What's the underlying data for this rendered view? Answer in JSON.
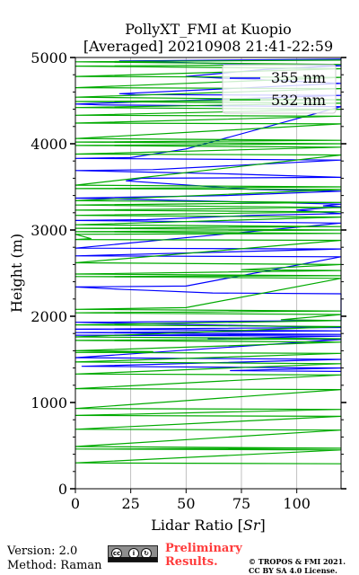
{
  "chart_data": {
    "type": "line",
    "title": "PollyXT_FMI at Kuopio",
    "subtitle": "[Averaged] 20210908 21:41-22:59",
    "xlabel": "Lidar Ratio [",
    "xlabel_unit": "Sr",
    "xlabel_close": "]",
    "ylabel": "Height (m)",
    "xlim": [
      0,
      120
    ],
    "ylim": [
      0,
      5000
    ],
    "xticks": [
      0,
      25,
      50,
      75,
      100
    ],
    "yticks": [
      0,
      1000,
      2000,
      3000,
      4000,
      5000
    ],
    "grid": true,
    "legend_position": "top-right",
    "series": [
      {
        "name": "355 nm",
        "color": "#0000ff",
        "points": [
          {
            "x": 120,
            "y": 4980
          },
          {
            "x": 20,
            "y": 4960
          },
          {
            "x": 73,
            "y": 4925
          },
          {
            "x": 120,
            "y": 4905
          },
          {
            "x": 85,
            "y": 4860
          },
          {
            "x": 50,
            "y": 4780
          },
          {
            "x": 120,
            "y": 4700
          },
          {
            "x": 20,
            "y": 4580
          },
          {
            "x": 27,
            "y": 4570
          },
          {
            "x": 120,
            "y": 4560
          },
          {
            "x": 0,
            "y": 4460
          },
          {
            "x": 12,
            "y": 4450
          },
          {
            "x": 120,
            "y": 4430
          },
          {
            "x": 50,
            "y": 3940
          },
          {
            "x": 25,
            "y": 3840
          },
          {
            "x": 0,
            "y": 3830
          },
          {
            "x": 120,
            "y": 3810
          },
          {
            "x": 35,
            "y": 3700
          },
          {
            "x": 0,
            "y": 3690
          },
          {
            "x": 70,
            "y": 3650
          },
          {
            "x": 120,
            "y": 3610
          },
          {
            "x": 30,
            "y": 3600
          },
          {
            "x": 23,
            "y": 3570
          },
          {
            "x": 80,
            "y": 3470
          },
          {
            "x": 120,
            "y": 3450
          },
          {
            "x": 68,
            "y": 3400
          },
          {
            "x": 0,
            "y": 3370
          },
          {
            "x": 120,
            "y": 3300
          },
          {
            "x": 112,
            "y": 3280
          },
          {
            "x": 120,
            "y": 3270
          },
          {
            "x": 100,
            "y": 3230
          },
          {
            "x": 120,
            "y": 3190
          },
          {
            "x": 80,
            "y": 3170
          },
          {
            "x": 32,
            "y": 3120
          },
          {
            "x": 0,
            "y": 3110
          },
          {
            "x": 120,
            "y": 3080
          },
          {
            "x": 0,
            "y": 2790
          },
          {
            "x": 120,
            "y": 2780
          },
          {
            "x": 0,
            "y": 2700
          },
          {
            "x": 120,
            "y": 2690
          },
          {
            "x": 50,
            "y": 2350
          },
          {
            "x": 0,
            "y": 2340
          },
          {
            "x": 22,
            "y": 2310
          },
          {
            "x": 33,
            "y": 2300
          },
          {
            "x": 62,
            "y": 2270
          },
          {
            "x": 120,
            "y": 2260
          },
          {
            "x": 120,
            "y": 1950
          },
          {
            "x": 0,
            "y": 1930
          },
          {
            "x": 120,
            "y": 1870
          },
          {
            "x": 0,
            "y": 1850
          },
          {
            "x": 120,
            "y": 1830
          },
          {
            "x": 0,
            "y": 1810
          },
          {
            "x": 120,
            "y": 1790
          },
          {
            "x": 0,
            "y": 1780
          },
          {
            "x": 120,
            "y": 1770
          },
          {
            "x": 60,
            "y": 1740
          },
          {
            "x": 120,
            "y": 1730
          },
          {
            "x": 0,
            "y": 1520
          },
          {
            "x": 120,
            "y": 1500
          },
          {
            "x": 3,
            "y": 1420
          },
          {
            "x": 120,
            "y": 1400
          },
          {
            "x": 70,
            "y": 1370
          },
          {
            "x": 120,
            "y": 1360
          }
        ]
      },
      {
        "name": "532 nm",
        "color": "#00aa00",
        "points": [
          {
            "x": 120,
            "y": 4970
          },
          {
            "x": 0,
            "y": 4950
          },
          {
            "x": 120,
            "y": 4920
          },
          {
            "x": 0,
            "y": 4900
          },
          {
            "x": 120,
            "y": 4870
          },
          {
            "x": 0,
            "y": 4780
          },
          {
            "x": 120,
            "y": 4770
          },
          {
            "x": 0,
            "y": 4650
          },
          {
            "x": 120,
            "y": 4640
          },
          {
            "x": 0,
            "y": 4540
          },
          {
            "x": 120,
            "y": 4510
          },
          {
            "x": 0,
            "y": 4490
          },
          {
            "x": 120,
            "y": 4470
          },
          {
            "x": 0,
            "y": 4420
          },
          {
            "x": 120,
            "y": 4400
          },
          {
            "x": 0,
            "y": 4330
          },
          {
            "x": 120,
            "y": 4320
          },
          {
            "x": 0,
            "y": 4240
          },
          {
            "x": 120,
            "y": 4230
          },
          {
            "x": 0,
            "y": 4060
          },
          {
            "x": 120,
            "y": 4040
          },
          {
            "x": 0,
            "y": 4020
          },
          {
            "x": 120,
            "y": 4000
          },
          {
            "x": 0,
            "y": 3980
          },
          {
            "x": 120,
            "y": 3960
          },
          {
            "x": 0,
            "y": 3880
          },
          {
            "x": 120,
            "y": 3870
          },
          {
            "x": 0,
            "y": 3520
          },
          {
            "x": 120,
            "y": 3500
          },
          {
            "x": 0,
            "y": 3480
          },
          {
            "x": 120,
            "y": 3470
          },
          {
            "x": 0,
            "y": 3340
          },
          {
            "x": 120,
            "y": 3320
          },
          {
            "x": 0,
            "y": 3290
          },
          {
            "x": 120,
            "y": 3260
          },
          {
            "x": 0,
            "y": 3230
          },
          {
            "x": 120,
            "y": 3210
          },
          {
            "x": 0,
            "y": 3170
          },
          {
            "x": 120,
            "y": 3150
          },
          {
            "x": 0,
            "y": 3060
          },
          {
            "x": 120,
            "y": 3040
          },
          {
            "x": 0,
            "y": 3020
          },
          {
            "x": 120,
            "y": 3000
          },
          {
            "x": 0,
            "y": 2980
          },
          {
            "x": 120,
            "y": 2960
          },
          {
            "x": 0,
            "y": 2950
          },
          {
            "x": 7,
            "y": 2900
          },
          {
            "x": 0,
            "y": 2890
          },
          {
            "x": 120,
            "y": 2880
          },
          {
            "x": 0,
            "y": 2620
          },
          {
            "x": 120,
            "y": 2600
          },
          {
            "x": 75,
            "y": 2540
          },
          {
            "x": 120,
            "y": 2530
          },
          {
            "x": 0,
            "y": 2490
          },
          {
            "x": 120,
            "y": 2470
          },
          {
            "x": 0,
            "y": 2460
          },
          {
            "x": 120,
            "y": 2440
          },
          {
            "x": 50,
            "y": 2100
          },
          {
            "x": 0,
            "y": 2080
          },
          {
            "x": 120,
            "y": 2060
          },
          {
            "x": 0,
            "y": 2040
          },
          {
            "x": 120,
            "y": 2020
          },
          {
            "x": 93,
            "y": 1960
          },
          {
            "x": 120,
            "y": 1950
          },
          {
            "x": 0,
            "y": 1900
          },
          {
            "x": 120,
            "y": 1880
          },
          {
            "x": 0,
            "y": 1760
          },
          {
            "x": 120,
            "y": 1740
          },
          {
            "x": 0,
            "y": 1720
          },
          {
            "x": 120,
            "y": 1700
          },
          {
            "x": 0,
            "y": 1600
          },
          {
            "x": 35,
            "y": 1590
          },
          {
            "x": 0,
            "y": 1580
          },
          {
            "x": 120,
            "y": 1570
          },
          {
            "x": 0,
            "y": 1470
          },
          {
            "x": 120,
            "y": 1450
          },
          {
            "x": 0,
            "y": 1330
          },
          {
            "x": 120,
            "y": 1320
          },
          {
            "x": 0,
            "y": 1160
          },
          {
            "x": 120,
            "y": 1150
          },
          {
            "x": 0,
            "y": 930
          },
          {
            "x": 120,
            "y": 920
          },
          {
            "x": 0,
            "y": 850
          },
          {
            "x": 120,
            "y": 840
          },
          {
            "x": 0,
            "y": 690
          },
          {
            "x": 120,
            "y": 680
          },
          {
            "x": 0,
            "y": 490
          },
          {
            "x": 120,
            "y": 470
          },
          {
            "x": 0,
            "y": 460
          },
          {
            "x": 120,
            "y": 450
          },
          {
            "x": 0,
            "y": 300
          },
          {
            "x": 120,
            "y": 290
          }
        ]
      }
    ]
  },
  "footer": {
    "version": "Version: 2.0",
    "method": "Method: Raman",
    "preliminary_line1": "Preliminary",
    "preliminary_line2": "Results.",
    "copyright_line1": "© TROPOS & FMI 2021.",
    "copyright_line2": "CC BY SA 4.0 License.",
    "license_logo_text": "cc by sa"
  }
}
